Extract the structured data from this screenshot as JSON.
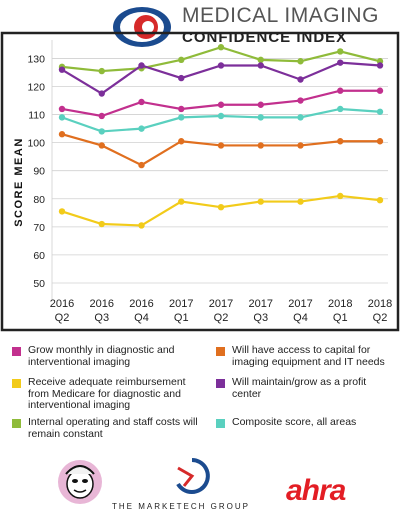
{
  "header": {
    "title_line1": "MEDICAL IMAGING",
    "title_line2": "CONFIDENCE INDEX"
  },
  "colors": {
    "magenta": "#c2308e",
    "orange": "#e06f1f",
    "yellow": "#f2cb1a",
    "purple": "#7c2f9a",
    "green": "#8fbb3a",
    "teal": "#5ad0bf",
    "frame": "#222222",
    "grid": "#d0d0d0"
  },
  "chart_data": {
    "type": "line",
    "ylabel": "SCORE MEAN",
    "ylim": [
      45,
      138
    ],
    "yticks": [
      50,
      60,
      70,
      80,
      90,
      100,
      110,
      120,
      130
    ],
    "categories": [
      "2016 Q2",
      "2016 Q3",
      "2016 Q4",
      "2017 Q1",
      "2017 Q2",
      "2017 Q3",
      "2017 Q4",
      "2018 Q1",
      "2018 Q2"
    ],
    "category_labels": [
      [
        "2016",
        "Q2"
      ],
      [
        "2016",
        "Q3"
      ],
      [
        "2016",
        "Q4"
      ],
      [
        "2017",
        "Q1"
      ],
      [
        "2017",
        "Q2"
      ],
      [
        "2017",
        "Q3"
      ],
      [
        "2017",
        "Q4"
      ],
      [
        "2018",
        "Q1"
      ],
      [
        "2018",
        "Q2"
      ]
    ],
    "series": [
      {
        "name": "Internal operating and staff costs will remain constant",
        "color": "#8fbb3a",
        "values": [
          127,
          125.5,
          126.5,
          129.5,
          134,
          129.5,
          129,
          132.5,
          129
        ]
      },
      {
        "name": "Will maintain/grow as a profit center",
        "color": "#7c2f9a",
        "values": [
          126,
          117.5,
          127.5,
          123,
          127.5,
          127.5,
          122.5,
          128.5,
          127.5
        ]
      },
      {
        "name": "Grow monthly in diagnostic and interventional imaging",
        "color": "#c2308e",
        "values": [
          112,
          109.5,
          114.5,
          112,
          113.5,
          113.5,
          115,
          118.5,
          118.5
        ]
      },
      {
        "name": "Composite score, all areas",
        "color": "#5ad0bf",
        "values": [
          109,
          104,
          105,
          109,
          109.5,
          109,
          109,
          112,
          111
        ]
      },
      {
        "name": "Will have access to capital for imaging equipment and IT needs",
        "color": "#e06f1f",
        "values": [
          103,
          99,
          92,
          100.5,
          99,
          99,
          99,
          100.5,
          100.5
        ]
      },
      {
        "name": "Receive adequate reimbursement from Medicare for diagnostic and interventional imaging",
        "color": "#f2cb1a",
        "values": [
          75.5,
          71,
          70.5,
          79,
          77,
          79,
          79,
          81,
          79.5
        ]
      }
    ]
  },
  "legend": [
    {
      "label": "Grow monthly in diagnostic and interventional imaging",
      "color": "#c2308e"
    },
    {
      "label": "Will have access to capital for imaging equipment and IT needs",
      "color": "#e06f1f"
    },
    {
      "label": "Receive adequate reimbursement from Medicare for diagnostic and interventional imaging",
      "color": "#f2cb1a"
    },
    {
      "label": "Will maintain/grow as a profit center",
      "color": "#7c2f9a"
    },
    {
      "label": "Internal operating and staff costs will remain constant",
      "color": "#8fbb3a"
    },
    {
      "label": "Composite score, all areas",
      "color": "#5ad0bf"
    }
  ],
  "footer": {
    "company": "THE MARKETECH GROUP",
    "brand": "ahra"
  }
}
